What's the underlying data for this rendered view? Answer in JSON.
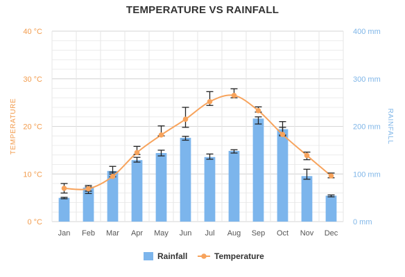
{
  "chart_data": {
    "type": "bar-line",
    "title": "TEMPERATURE VS RAINFALL",
    "categories": [
      "Jan",
      "Feb",
      "Mar",
      "Apr",
      "May",
      "Jun",
      "Jul",
      "Aug",
      "Sep",
      "Oct",
      "Nov",
      "Dec"
    ],
    "left_axis": {
      "label": "TEMPERATURE",
      "range": [
        0,
        40
      ],
      "ticks": [
        "0 °C",
        "10 °C",
        "20 °C",
        "30 °C",
        "40 °C"
      ],
      "tick_values": [
        0,
        10,
        20,
        30,
        40
      ]
    },
    "right_axis": {
      "label": "RAINFALL",
      "range": [
        0,
        400
      ],
      "ticks": [
        "0 mm",
        "100 mm",
        "200 mm",
        "300 mm",
        "400 mm"
      ],
      "tick_values": [
        0,
        100,
        200,
        300,
        400
      ]
    },
    "series": [
      {
        "name": "Rainfall",
        "kind": "bar",
        "axis": "right",
        "color": "#7CB5EC",
        "values": [
          49.9,
          71.5,
          106.4,
          129.2,
          144.0,
          176.0,
          135.6,
          148.5,
          216.4,
          194.1,
          95.6,
          54.4
        ],
        "error": [
          [
            48,
            51
          ],
          [
            64,
            73
          ],
          [
            100,
            116
          ],
          [
            125,
            135
          ],
          [
            138,
            150
          ],
          [
            171,
            179
          ],
          [
            131,
            142
          ],
          [
            144,
            151
          ],
          [
            205,
            220
          ],
          [
            182,
            198
          ],
          [
            89,
            110
          ],
          [
            52,
            56
          ]
        ]
      },
      {
        "name": "Temperature",
        "kind": "line",
        "axis": "left",
        "color": "#F7A35C",
        "values": [
          7.0,
          6.9,
          9.5,
          14.5,
          18.2,
          21.5,
          25.2,
          26.5,
          23.3,
          18.3,
          13.9,
          9.6
        ],
        "error": [
          [
            6,
            8
          ],
          [
            5.9,
            7.6
          ],
          [
            9.4,
            10.4
          ],
          [
            14.1,
            15.8
          ],
          [
            18.0,
            20.1
          ],
          [
            19.8,
            24.0
          ],
          [
            24.4,
            27.3
          ],
          [
            26.0,
            27.9
          ],
          [
            23.0,
            24.1
          ],
          [
            18.0,
            21.0
          ],
          [
            13.0,
            14.6
          ],
          [
            9.2,
            10.2
          ]
        ]
      }
    ],
    "legend": {
      "position": "bottom",
      "items": [
        "Rainfall",
        "Temperature"
      ]
    },
    "grid": true
  }
}
